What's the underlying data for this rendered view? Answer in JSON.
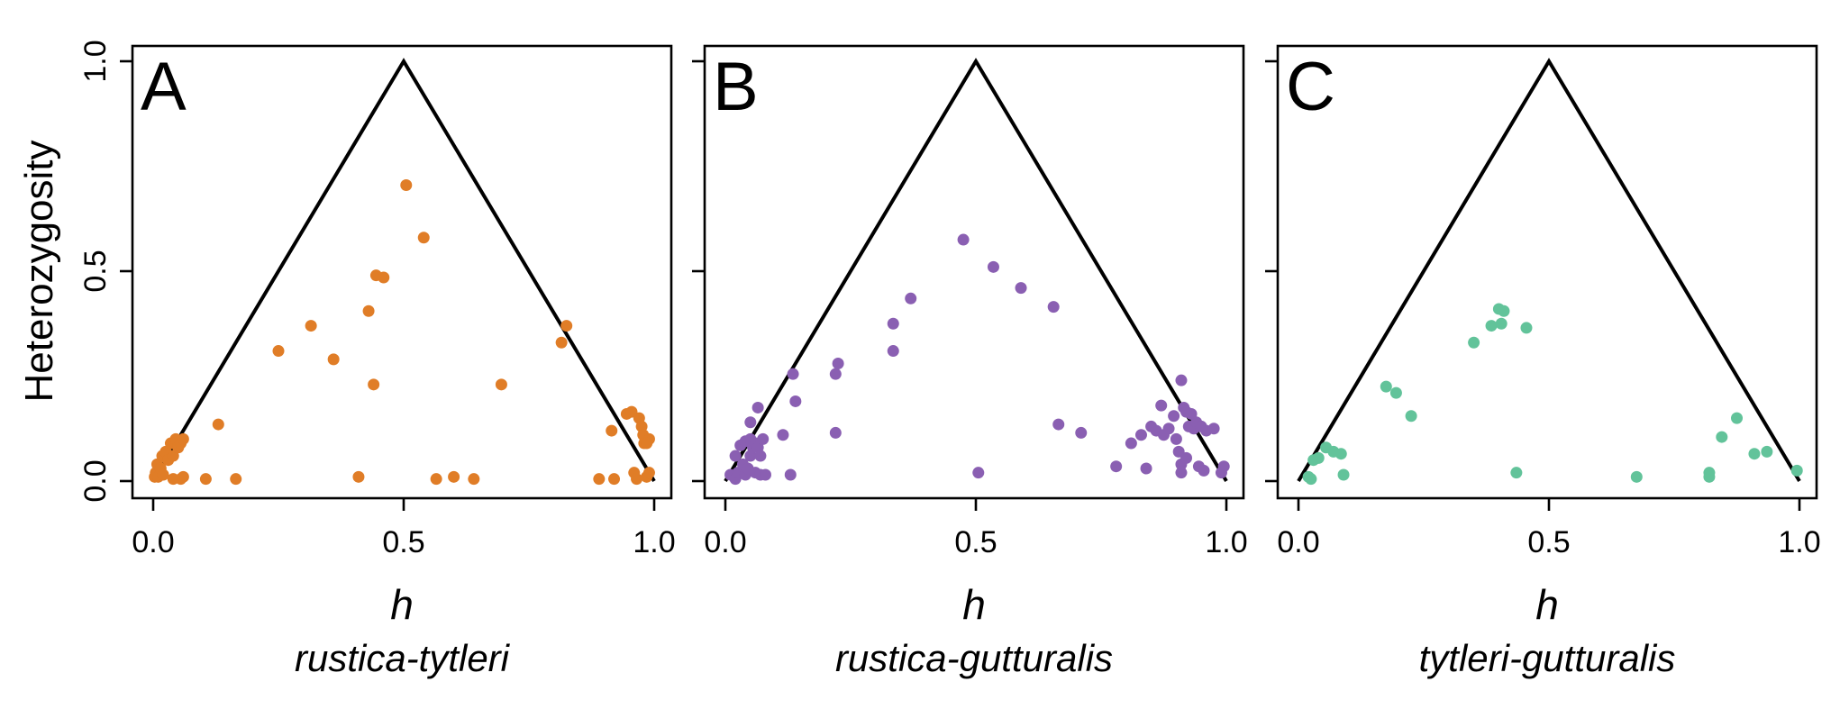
{
  "colors": {
    "orange": "#e07d27",
    "purple": "#8a5fb2",
    "green": "#62c39a"
  },
  "chart_data": [
    {
      "type": "scatter",
      "panel_label": "A",
      "pair": "rustica-tytleri",
      "xlabel": "h",
      "ylabel": "Heterozygosity",
      "xlim": [
        0,
        1
      ],
      "ylim": [
        0,
        1
      ],
      "x_ticks": [
        "0.0",
        "0.5",
        "1.0"
      ],
      "y_ticks": [
        "0.0",
        "0.5",
        "1.0"
      ],
      "color": "#e07d27",
      "triangle": [
        [
          0,
          0
        ],
        [
          0.5,
          1
        ],
        [
          1,
          0
        ]
      ],
      "points": [
        [
          0.003,
          0.01
        ],
        [
          0.005,
          0.02
        ],
        [
          0.008,
          0.04
        ],
        [
          0.01,
          0.01
        ],
        [
          0.015,
          0.03
        ],
        [
          0.018,
          0.06
        ],
        [
          0.02,
          0.015
        ],
        [
          0.025,
          0.07
        ],
        [
          0.03,
          0.05
        ],
        [
          0.035,
          0.09
        ],
        [
          0.04,
          0.06
        ],
        [
          0.045,
          0.1
        ],
        [
          0.05,
          0.08
        ],
        [
          0.055,
          0.09
        ],
        [
          0.06,
          0.1
        ],
        [
          0.055,
          0.005
        ],
        [
          0.04,
          0.005
        ],
        [
          0.06,
          0.01
        ],
        [
          0.105,
          0.005
        ],
        [
          0.13,
          0.135
        ],
        [
          0.165,
          0.005
        ],
        [
          0.25,
          0.31
        ],
        [
          0.315,
          0.37
        ],
        [
          0.36,
          0.29
        ],
        [
          0.41,
          0.01
        ],
        [
          0.43,
          0.405
        ],
        [
          0.44,
          0.23
        ],
        [
          0.445,
          0.49
        ],
        [
          0.46,
          0.485
        ],
        [
          0.505,
          0.705
        ],
        [
          0.54,
          0.58
        ],
        [
          0.565,
          0.005
        ],
        [
          0.6,
          0.01
        ],
        [
          0.64,
          0.005
        ],
        [
          0.695,
          0.23
        ],
        [
          0.815,
          0.33
        ],
        [
          0.825,
          0.37
        ],
        [
          0.89,
          0.005
        ],
        [
          0.915,
          0.12
        ],
        [
          0.92,
          0.005
        ],
        [
          0.945,
          0.16
        ],
        [
          0.955,
          0.165
        ],
        [
          0.96,
          0.02
        ],
        [
          0.965,
          0.005
        ],
        [
          0.97,
          0.15
        ],
        [
          0.975,
          0.13
        ],
        [
          0.978,
          0.11
        ],
        [
          0.98,
          0.09
        ],
        [
          0.985,
          0.01
        ],
        [
          0.99,
          0.02
        ],
        [
          0.99,
          0.1
        ],
        [
          0.985,
          0.09
        ]
      ]
    },
    {
      "type": "scatter",
      "panel_label": "B",
      "pair": "rustica-gutturalis",
      "xlabel": "h",
      "xlim": [
        0,
        1
      ],
      "ylim": [
        0,
        1
      ],
      "x_ticks": [
        "0.0",
        "0.5",
        "1.0"
      ],
      "color": "#8a5fb2",
      "triangle": [
        [
          0,
          0
        ],
        [
          0.5,
          1
        ],
        [
          1,
          0
        ]
      ],
      "points": [
        [
          0.01,
          0.015
        ],
        [
          0.02,
          0.005
        ],
        [
          0.02,
          0.06
        ],
        [
          0.025,
          0.02
        ],
        [
          0.03,
          0.085
        ],
        [
          0.035,
          0.04
        ],
        [
          0.04,
          0.095
        ],
        [
          0.04,
          0.015
        ],
        [
          0.045,
          0.03
        ],
        [
          0.05,
          0.06
        ],
        [
          0.05,
          0.1
        ],
        [
          0.05,
          0.14
        ],
        [
          0.055,
          0.08
        ],
        [
          0.06,
          0.09
        ],
        [
          0.06,
          0.02
        ],
        [
          0.065,
          0.175
        ],
        [
          0.07,
          0.015
        ],
        [
          0.065,
          0.08
        ],
        [
          0.07,
          0.06
        ],
        [
          0.075,
          0.1
        ],
        [
          0.08,
          0.015
        ],
        [
          0.115,
          0.11
        ],
        [
          0.13,
          0.015
        ],
        [
          0.135,
          0.255
        ],
        [
          0.14,
          0.19
        ],
        [
          0.22,
          0.255
        ],
        [
          0.22,
          0.115
        ],
        [
          0.225,
          0.28
        ],
        [
          0.335,
          0.375
        ],
        [
          0.335,
          0.31
        ],
        [
          0.37,
          0.435
        ],
        [
          0.475,
          0.575
        ],
        [
          0.505,
          0.02
        ],
        [
          0.535,
          0.51
        ],
        [
          0.59,
          0.46
        ],
        [
          0.655,
          0.415
        ],
        [
          0.665,
          0.135
        ],
        [
          0.71,
          0.115
        ],
        [
          0.78,
          0.035
        ],
        [
          0.81,
          0.09
        ],
        [
          0.83,
          0.11
        ],
        [
          0.84,
          0.03
        ],
        [
          0.85,
          0.13
        ],
        [
          0.86,
          0.12
        ],
        [
          0.87,
          0.18
        ],
        [
          0.875,
          0.11
        ],
        [
          0.885,
          0.125
        ],
        [
          0.895,
          0.155
        ],
        [
          0.9,
          0.1
        ],
        [
          0.905,
          0.07
        ],
        [
          0.91,
          0.24
        ],
        [
          0.91,
          0.02
        ],
        [
          0.915,
          0.175
        ],
        [
          0.92,
          0.165
        ],
        [
          0.925,
          0.13
        ],
        [
          0.93,
          0.16
        ],
        [
          0.935,
          0.125
        ],
        [
          0.94,
          0.14
        ],
        [
          0.945,
          0.035
        ],
        [
          0.95,
          0.13
        ],
        [
          0.955,
          0.025
        ],
        [
          0.96,
          0.12
        ],
        [
          0.975,
          0.125
        ],
        [
          0.99,
          0.02
        ],
        [
          0.995,
          0.035
        ],
        [
          0.91,
          0.04
        ],
        [
          0.92,
          0.055
        ]
      ]
    },
    {
      "type": "scatter",
      "panel_label": "C",
      "pair": "tytleri-gutturalis",
      "xlabel": "h",
      "xlim": [
        0,
        1
      ],
      "ylim": [
        0,
        1
      ],
      "x_ticks": [
        "0.0",
        "0.5",
        "1.0"
      ],
      "color": "#62c39a",
      "triangle": [
        [
          0,
          0
        ],
        [
          0.5,
          1
        ],
        [
          1,
          0
        ]
      ],
      "points": [
        [
          0.02,
          0.01
        ],
        [
          0.025,
          0.005
        ],
        [
          0.03,
          0.05
        ],
        [
          0.04,
          0.055
        ],
        [
          0.055,
          0.08
        ],
        [
          0.07,
          0.07
        ],
        [
          0.085,
          0.065
        ],
        [
          0.09,
          0.015
        ],
        [
          0.175,
          0.225
        ],
        [
          0.195,
          0.21
        ],
        [
          0.225,
          0.155
        ],
        [
          0.35,
          0.33
        ],
        [
          0.385,
          0.37
        ],
        [
          0.4,
          0.41
        ],
        [
          0.405,
          0.375
        ],
        [
          0.41,
          0.405
        ],
        [
          0.435,
          0.02
        ],
        [
          0.455,
          0.365
        ],
        [
          0.675,
          0.01
        ],
        [
          0.82,
          0.01
        ],
        [
          0.82,
          0.02
        ],
        [
          0.845,
          0.105
        ],
        [
          0.875,
          0.15
        ],
        [
          0.91,
          0.065
        ],
        [
          0.935,
          0.07
        ],
        [
          0.995,
          0.025
        ]
      ]
    }
  ]
}
